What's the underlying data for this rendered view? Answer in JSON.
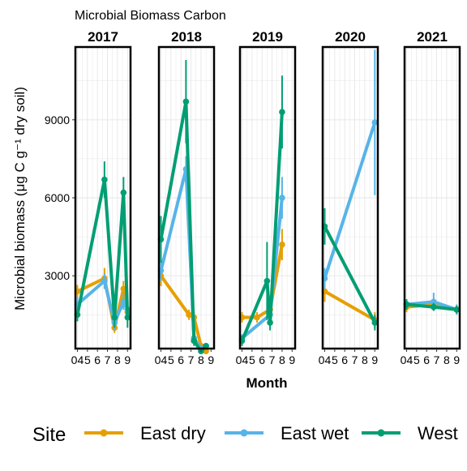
{
  "chart_data": {
    "type": "line",
    "title": "Microbial Biomass Carbon",
    "xlabel": "Month",
    "ylabel": "Microbial biomass (μg C g⁻¹ dry soil)",
    "ylim": [
      200,
      11800
    ],
    "yticks": [
      3000,
      6000,
      9000
    ],
    "xlim": [
      3.8,
      9.3
    ],
    "xticks": [
      4,
      5,
      6,
      7,
      8,
      9
    ],
    "xtick_labels": [
      "04",
      "5",
      "6",
      "7",
      "8",
      "9"
    ],
    "grid": true,
    "legend": {
      "title": "Site",
      "position": "bottom"
    },
    "facets": [
      "2017",
      "2018",
      "2019",
      "2020",
      "2021"
    ],
    "series": [
      {
        "name": "East dry",
        "color": "#E69F00",
        "data": {
          "2017": [
            [
              4,
              2400,
              250
            ],
            [
              6.7,
              2900,
              400
            ],
            [
              7.7,
              1000,
              200
            ],
            [
              8.6,
              2500,
              300
            ],
            [
              9,
              1600,
              300
            ]
          ],
          "2018": [
            [
              4,
              3000,
              400
            ],
            [
              6.8,
              1500,
              200
            ],
            [
              7.3,
              1400,
              200
            ],
            [
              8,
              300,
              100
            ],
            [
              8.5,
              100,
              100
            ]
          ],
          "2019": [
            [
              4,
              1400,
              200
            ],
            [
              5.5,
              1400,
              200
            ],
            [
              6.8,
              1700,
              200
            ],
            [
              8,
              4200,
              600
            ]
          ],
          "2020": [
            [
              4,
              2400,
              400
            ],
            [
              9,
              1300,
              300
            ]
          ],
          "2021": [
            [
              4,
              1800,
              200
            ],
            [
              6.7,
              1900,
              200
            ],
            [
              9,
              1700,
              150
            ]
          ]
        }
      },
      {
        "name": "East wet",
        "color": "#56B4E9",
        "data": {
          "2017": [
            [
              4,
              1900,
              300
            ],
            [
              6.7,
              2800,
              300
            ],
            [
              7.7,
              1200,
              300
            ],
            [
              8.6,
              2000,
              300
            ],
            [
              9,
              1700,
              300
            ]
          ],
          "2018": [
            [
              4,
              3200,
              400
            ],
            [
              6.5,
              7100,
              500
            ],
            [
              7.3,
              600,
              200
            ],
            [
              8,
              200,
              100
            ],
            [
              8.5,
              300,
              100
            ]
          ],
          "2019": [
            [
              4,
              600,
              150
            ],
            [
              6.8,
              1500,
              300
            ],
            [
              8,
              6000,
              800
            ]
          ],
          "2020": [
            [
              4,
              2900,
              400
            ],
            [
              9,
              8900,
              2800
            ]
          ],
          "2021": [
            [
              4,
              1900,
              200
            ],
            [
              6.7,
              2000,
              350
            ],
            [
              9,
              1700,
              200
            ]
          ]
        }
      },
      {
        "name": "West",
        "color": "#009E73",
        "data": {
          "2017": [
            [
              4,
              1500,
              250
            ],
            [
              6.7,
              6700,
              700
            ],
            [
              7.7,
              1400,
              400
            ],
            [
              8.6,
              6200,
              600
            ],
            [
              9,
              1400,
              400
            ]
          ],
          "2018": [
            [
              4,
              4400,
              900
            ],
            [
              6.5,
              9700,
              1600
            ],
            [
              7.3,
              500,
              200
            ],
            [
              8,
              100,
              100
            ],
            [
              8.5,
              300,
              100
            ]
          ],
          "2019": [
            [
              4,
              500,
              200
            ],
            [
              6.5,
              2800,
              1500
            ],
            [
              6.8,
              1200,
              300
            ],
            [
              8,
              9300,
              1400
            ]
          ],
          "2020": [
            [
              4,
              4900,
              700
            ],
            [
              9,
              1200,
              300
            ]
          ],
          "2021": [
            [
              4,
              1900,
              200
            ],
            [
              6.7,
              1800,
              150
            ],
            [
              9,
              1700,
              150
            ]
          ]
        }
      }
    ]
  }
}
